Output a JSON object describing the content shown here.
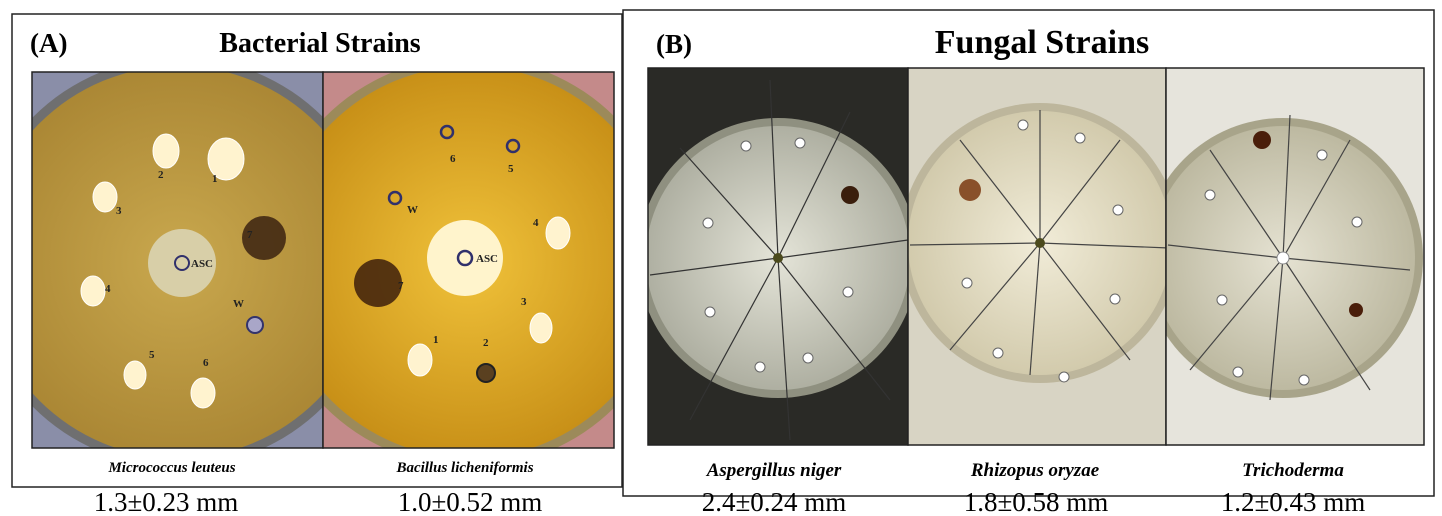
{
  "panel_a": {
    "label": "(A)",
    "title": "Bacterial Strains",
    "plates": [
      {
        "species": "Micrococcus leuteus",
        "measurement": "1.3±0.23 mm",
        "marks": [
          "2",
          "1",
          "3",
          "7",
          "ASC",
          "4",
          "W",
          "5",
          "6"
        ]
      },
      {
        "species": "Bacillus licheniformis",
        "measurement": "1.0±0.52 mm",
        "marks": [
          "6",
          "5",
          "W",
          "4",
          "ASC",
          "7",
          "3",
          "1",
          "2"
        ]
      }
    ]
  },
  "panel_b": {
    "label": "(B)",
    "title": "Fungal Strains",
    "plates": [
      {
        "species": "Aspergillus niger",
        "measurement": "2.4±0.24 mm"
      },
      {
        "species": "Rhizopus oryzae",
        "measurement": "1.8±0.58 mm"
      },
      {
        "species": "Trichoderma",
        "measurement": "1.2±0.43 mm"
      }
    ]
  }
}
